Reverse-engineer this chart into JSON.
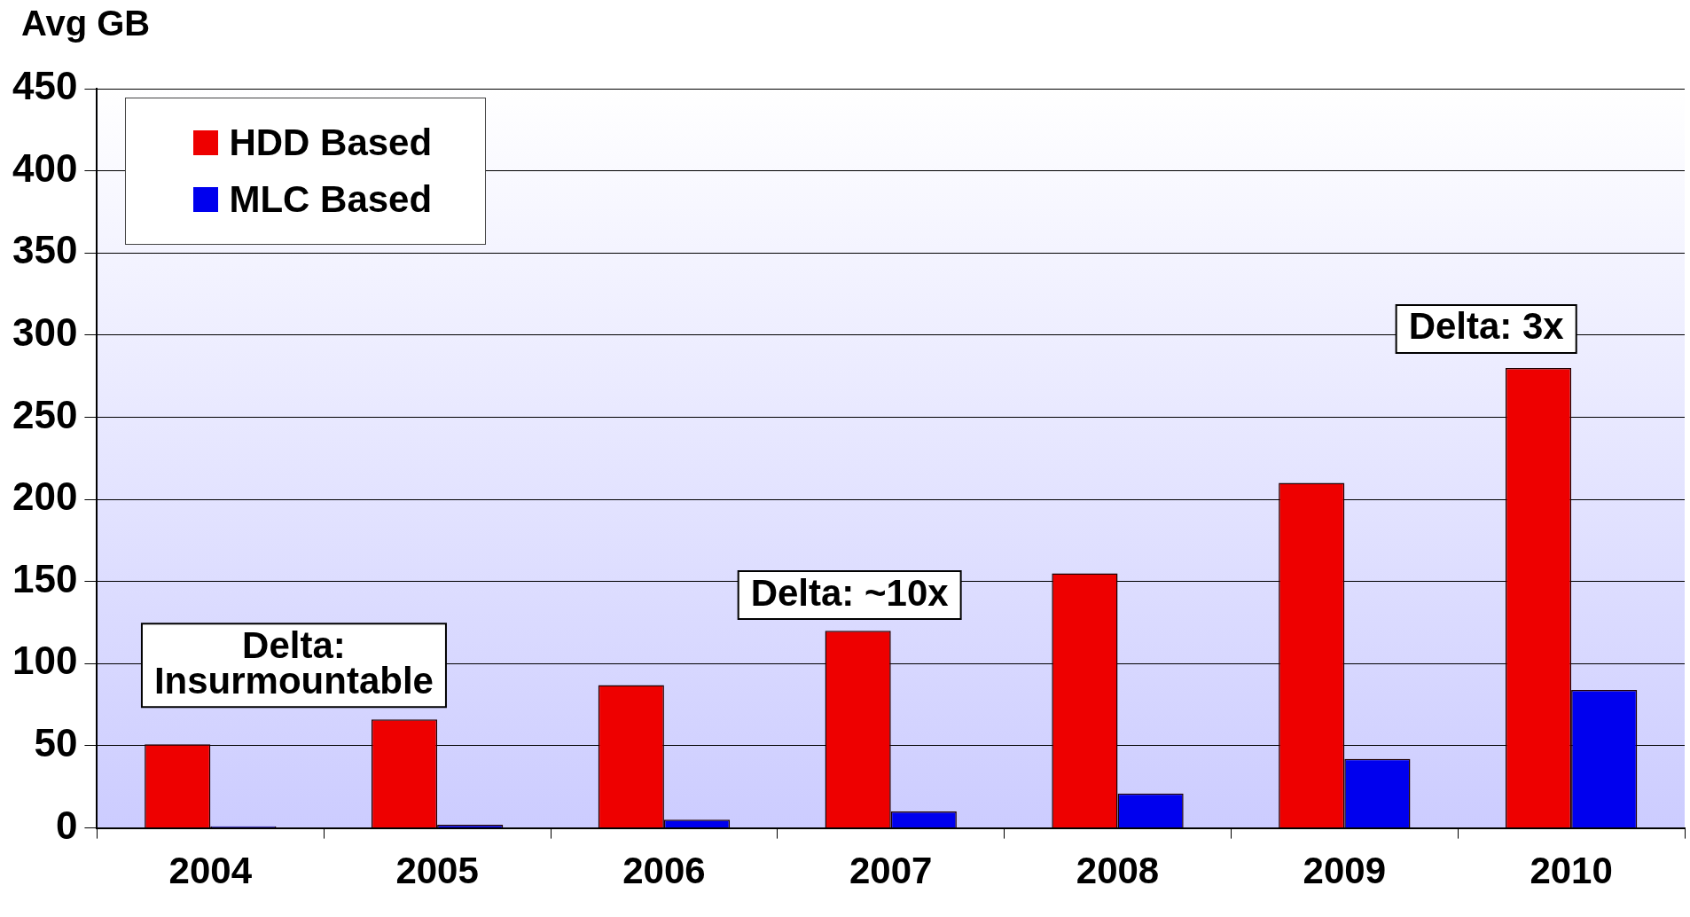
{
  "chart_data": {
    "type": "bar",
    "ylabel": "Avg GB",
    "categories": [
      "2004",
      "2005",
      "2006",
      "2007",
      "2008",
      "2009",
      "2010"
    ],
    "series": [
      {
        "name": "HDD Based",
        "color": "#ee0000",
        "values": [
          51,
          66,
          87,
          120,
          155,
          210,
          280
        ]
      },
      {
        "name": "MLC Based",
        "color": "#0000ee",
        "values": [
          1,
          2,
          5,
          10,
          21,
          42,
          84
        ]
      }
    ],
    "ylim": [
      0,
      450
    ],
    "yticks": [
      0,
      50,
      100,
      150,
      200,
      250,
      300,
      350,
      400,
      450
    ],
    "grid": "y",
    "legend": "top left",
    "annotations": [
      "Delta:\nInsurmountable",
      "Delta: ~10x",
      "Delta: 3x"
    ]
  }
}
